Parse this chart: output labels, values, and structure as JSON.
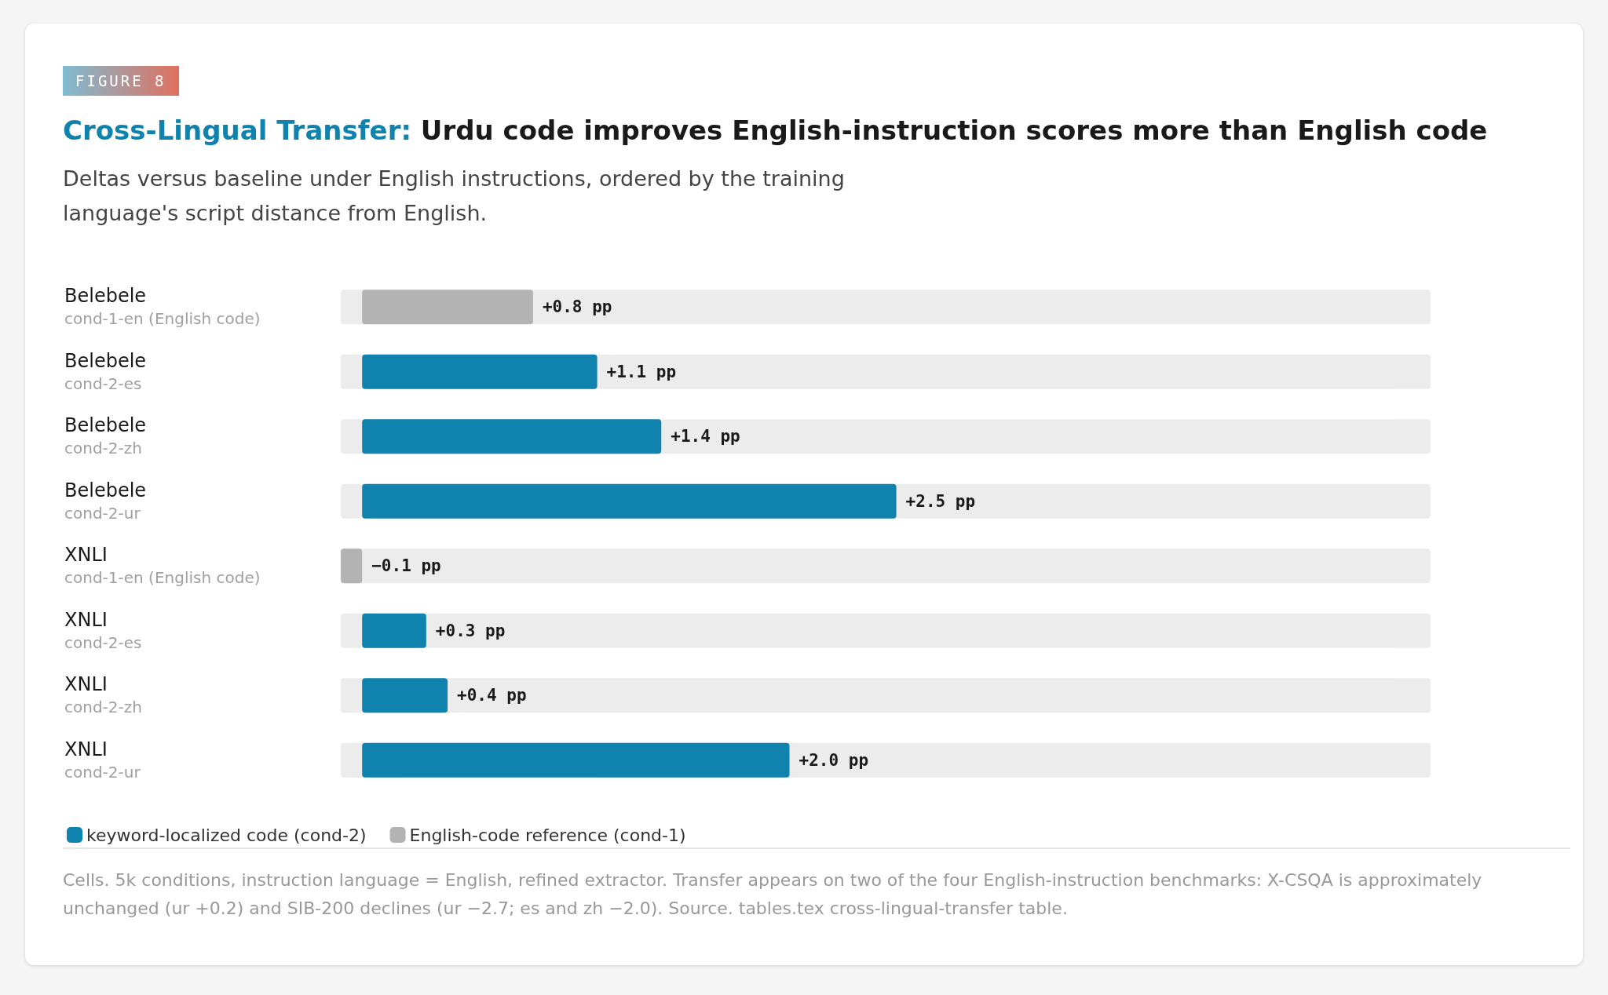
{
  "chart_data": {
    "type": "bar",
    "orientation": "horizontal",
    "stacked": true,
    "title": "Cross-Lingual Transfer: Urdu code improves English-instruction scores more than English code",
    "subtitle": "Deltas versus baseline under English instructions, ordered by the training language's script distance from English.",
    "categories": [
      "Belebele\ncond-1-en (English code)",
      "Belebele\ncond-2-es",
      "Belebele\ncond-2-zh",
      "Belebele\ncond-2-ur",
      "XNLI\ncond-1-en (English code)",
      "XNLI\ncond-2-es",
      "XNLI\ncond-2-zh",
      "XNLI\ncond-2-ur"
    ],
    "series": [
      {
        "name": "keyword-localized code (cond-2)",
        "color": "#0f83ae",
        "values": [
          null,
          1.1,
          1.4,
          2.5,
          null,
          0.3,
          0.4,
          2.0
        ],
        "value_labels": [
          null,
          "+1.1 pp",
          "+1.4 pp",
          "+2.5 pp",
          null,
          "+0.3 pp",
          "+0.4 pp",
          "+2.0 pp"
        ]
      },
      {
        "name": "English-code reference (cond-1)",
        "color": "#b3b3b3",
        "values": [
          0.8,
          null,
          null,
          null,
          -0.1,
          null,
          null,
          null
        ],
        "value_labels": [
          "+0.8 pp",
          null,
          null,
          null,
          "−0.1 pp",
          null,
          null,
          null
        ]
      }
    ],
    "legend": "bottom left",
    "grid": false,
    "annotations": [
      "FIGURE 8",
      "Cells. 5k conditions, instruction language = English, refined extractor. Transfer appears on two of the four English-instruction benchmarks: X-CSQA is approximately unchanged (ur +0.2) and SIB-200 declines (ur −2.7; es and zh −2.0). Source. tables.tex cross-lingual-transfer table."
    ]
  }
}
